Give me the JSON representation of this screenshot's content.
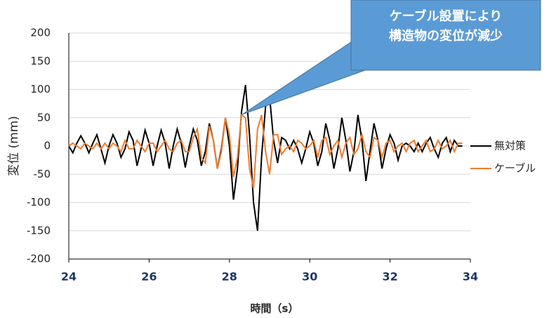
{
  "chart_data": {
    "type": "line",
    "annotation": [
      "ケーブル設置により",
      "構造物の変位が減少"
    ],
    "xlabel": "時間（s）",
    "ylabel": "変位 (mm)",
    "x": [
      24,
      24.1,
      24.2,
      24.3,
      24.4,
      24.5,
      24.6,
      24.7,
      24.8,
      24.9,
      25,
      25.1,
      25.2,
      25.3,
      25.4,
      25.5,
      25.6,
      25.7,
      25.8,
      25.9,
      26,
      26.1,
      26.2,
      26.3,
      26.4,
      26.5,
      26.6,
      26.7,
      26.8,
      26.9,
      27,
      27.1,
      27.2,
      27.3,
      27.4,
      27.5,
      27.6,
      27.7,
      27.8,
      27.9,
      28,
      28.1,
      28.2,
      28.3,
      28.4,
      28.5,
      28.6,
      28.7,
      28.8,
      28.9,
      29,
      29.1,
      29.2,
      29.3,
      29.4,
      29.5,
      29.6,
      29.7,
      29.8,
      29.9,
      30,
      30.1,
      30.2,
      30.3,
      30.4,
      30.5,
      30.6,
      30.7,
      30.8,
      30.9,
      31,
      31.1,
      31.2,
      31.3,
      31.4,
      31.5,
      31.6,
      31.7,
      31.8,
      31.9,
      32,
      32.1,
      32.2,
      32.3,
      32.4,
      32.5,
      32.6,
      32.7,
      32.8,
      32.9,
      33,
      33.1,
      33.2,
      33.3,
      33.4,
      33.5,
      33.6,
      33.7,
      33.8
    ],
    "series": [
      {
        "name": "無対策",
        "color": "#000000",
        "values": [
          0,
          -12,
          5,
          18,
          5,
          -12,
          5,
          20,
          -5,
          -30,
          0,
          20,
          5,
          -20,
          -5,
          25,
          10,
          -35,
          -5,
          28,
          5,
          -35,
          0,
          28,
          5,
          -40,
          0,
          30,
          5,
          -38,
          0,
          30,
          10,
          -35,
          -10,
          40,
          10,
          -40,
          -5,
          50,
          0,
          -95,
          -40,
          60,
          108,
          20,
          -100,
          -150,
          -20,
          70,
          88,
          10,
          -30,
          15,
          10,
          -5,
          10,
          -5,
          -30,
          -5,
          25,
          5,
          -35,
          -10,
          40,
          10,
          -40,
          -5,
          50,
          10,
          -45,
          -10,
          55,
          10,
          -62,
          -10,
          40,
          10,
          -40,
          -5,
          20,
          5,
          -25,
          0,
          5,
          0,
          -10,
          5,
          -10,
          5,
          15,
          -5,
          -20,
          5,
          15,
          -10,
          10,
          0,
          0
        ]
      },
      {
        "name": "ケーブル",
        "color": "#ed7d31",
        "values": [
          0,
          5,
          0,
          -5,
          5,
          0,
          -5,
          5,
          -5,
          5,
          -5,
          5,
          0,
          -10,
          10,
          -5,
          -5,
          10,
          0,
          -10,
          5,
          5,
          -10,
          0,
          10,
          -5,
          -10,
          5,
          10,
          -10,
          -10,
          15,
          30,
          -20,
          -30,
          35,
          10,
          -40,
          -10,
          50,
          20,
          -55,
          -20,
          55,
          50,
          -40,
          -75,
          30,
          55,
          -10,
          -50,
          20,
          20,
          -15,
          -5,
          0,
          -10,
          10,
          5,
          -5,
          0,
          10,
          -20,
          10,
          15,
          -15,
          0,
          10,
          -20,
          5,
          15,
          -15,
          -5,
          20,
          -10,
          -20,
          15,
          10,
          -20,
          5,
          10,
          -10,
          0,
          5,
          -10,
          5,
          10,
          -10,
          0,
          10,
          -10,
          -5,
          10,
          -5,
          0,
          10,
          -10,
          5,
          5
        ]
      }
    ],
    "xlim": [
      24,
      34
    ],
    "xticks": [
      24,
      26,
      28,
      30,
      32,
      34
    ],
    "ylim": [
      -200,
      200
    ],
    "yticks": [
      -200,
      -150,
      -100,
      -50,
      0,
      50,
      100,
      150,
      200
    ],
    "grid": true,
    "legend": "right"
  }
}
